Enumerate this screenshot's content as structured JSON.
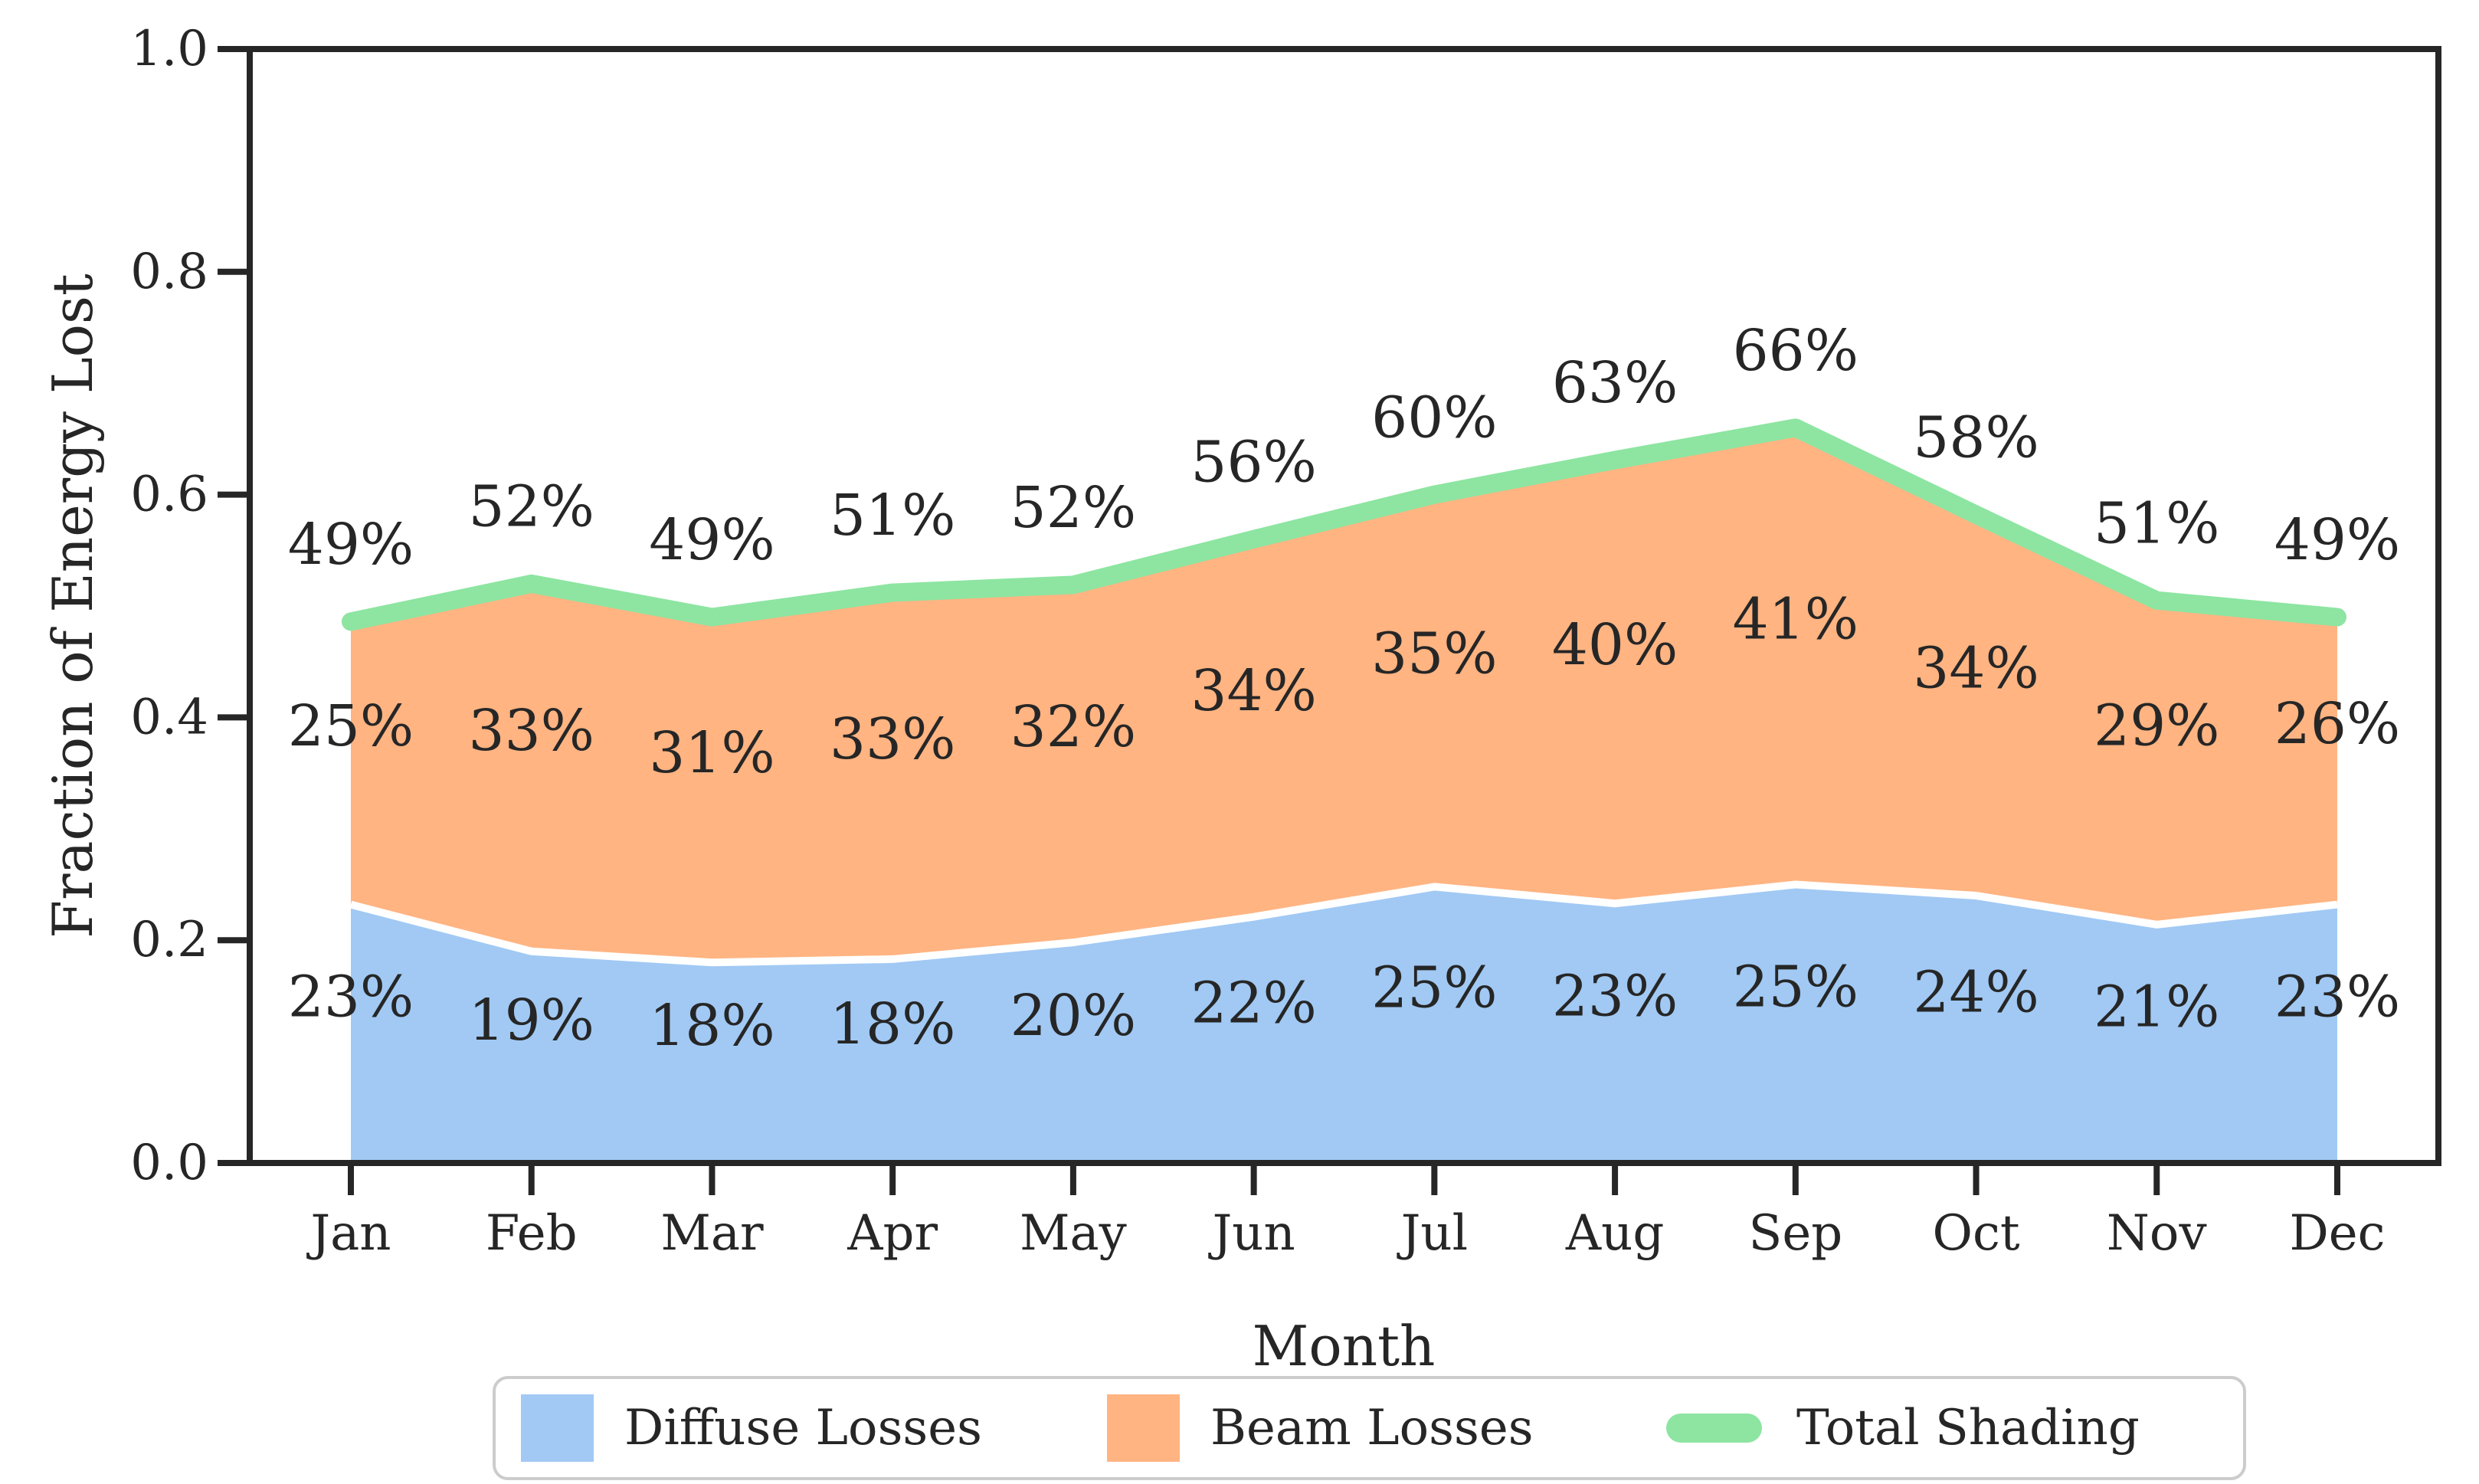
{
  "chart_data": {
    "type": "area",
    "stacked": true,
    "xlabel": "Month",
    "ylabel": "Fraction of Energy Lost",
    "categories": [
      "Jan",
      "Feb",
      "Mar",
      "Apr",
      "May",
      "Jun",
      "Jul",
      "Aug",
      "Sep",
      "Oct",
      "Nov",
      "Dec"
    ],
    "y_ticks": [
      "0.0",
      "0.2",
      "0.4",
      "0.6",
      "0.8",
      "1.0"
    ],
    "y_tick_values": [
      0.0,
      0.2,
      0.4,
      0.6,
      0.8,
      1.0
    ],
    "ylim": [
      0,
      1
    ],
    "grid": false,
    "axis_color": "#262626",
    "boundary_line_color": "#ffffff",
    "series": [
      {
        "name": "Diffuse Losses",
        "kind": "area",
        "color": "#a1c9f4",
        "values": [
          0.232,
          0.19,
          0.18,
          0.183,
          0.198,
          0.221,
          0.248,
          0.233,
          0.25,
          0.24,
          0.214,
          0.232
        ],
        "labels": [
          "23%",
          "19%",
          "18%",
          "18%",
          "20%",
          "22%",
          "25%",
          "23%",
          "25%",
          "24%",
          "21%",
          "23%"
        ]
      },
      {
        "name": "Beam Losses",
        "kind": "area",
        "color": "#ffb482",
        "values": [
          0.254,
          0.33,
          0.31,
          0.329,
          0.321,
          0.339,
          0.352,
          0.398,
          0.41,
          0.342,
          0.291,
          0.258
        ],
        "labels": [
          "25%",
          "33%",
          "31%",
          "33%",
          "32%",
          "34%",
          "35%",
          "40%",
          "41%",
          "34%",
          "29%",
          "26%"
        ]
      },
      {
        "name": "Total Shading",
        "kind": "line",
        "color": "#8de5a1",
        "values": [
          0.486,
          0.52,
          0.49,
          0.512,
          0.519,
          0.56,
          0.6,
          0.631,
          0.66,
          0.582,
          0.505,
          0.49
        ],
        "labels": [
          "49%",
          "52%",
          "49%",
          "51%",
          "52%",
          "56%",
          "60%",
          "63%",
          "66%",
          "58%",
          "51%",
          "49%"
        ]
      }
    ],
    "legend": {
      "position": "lower center",
      "entries": [
        "Diffuse Losses",
        "Beam Losses",
        "Total Shading"
      ],
      "border_color": "#cccccc",
      "background": "#ffffff"
    }
  }
}
